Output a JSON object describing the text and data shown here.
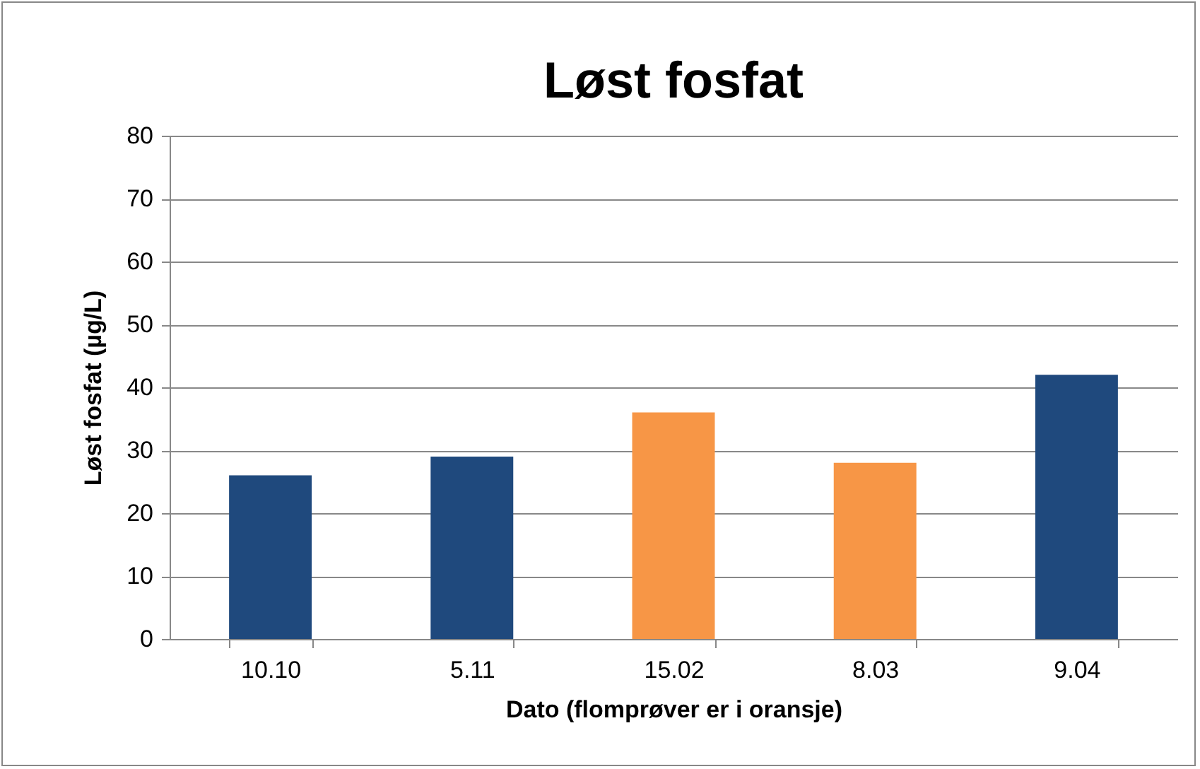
{
  "chart_data": {
    "type": "bar",
    "title": "Løst fosfat",
    "xlabel": "Dato (flomprøver er i oransje)",
    "ylabel": "Løst fosfat (µg/L)",
    "categories": [
      "10.10",
      "5.11",
      "15.02",
      "8.03",
      "9.04"
    ],
    "values": [
      26,
      29,
      36,
      28,
      42
    ],
    "colors": [
      "#1f497d",
      "#1f497d",
      "#f79646",
      "#f79646",
      "#1f497d"
    ],
    "ylim": [
      0,
      80
    ],
    "yticks": [
      0,
      10,
      20,
      30,
      40,
      50,
      60,
      70,
      80
    ],
    "grid": "y"
  }
}
